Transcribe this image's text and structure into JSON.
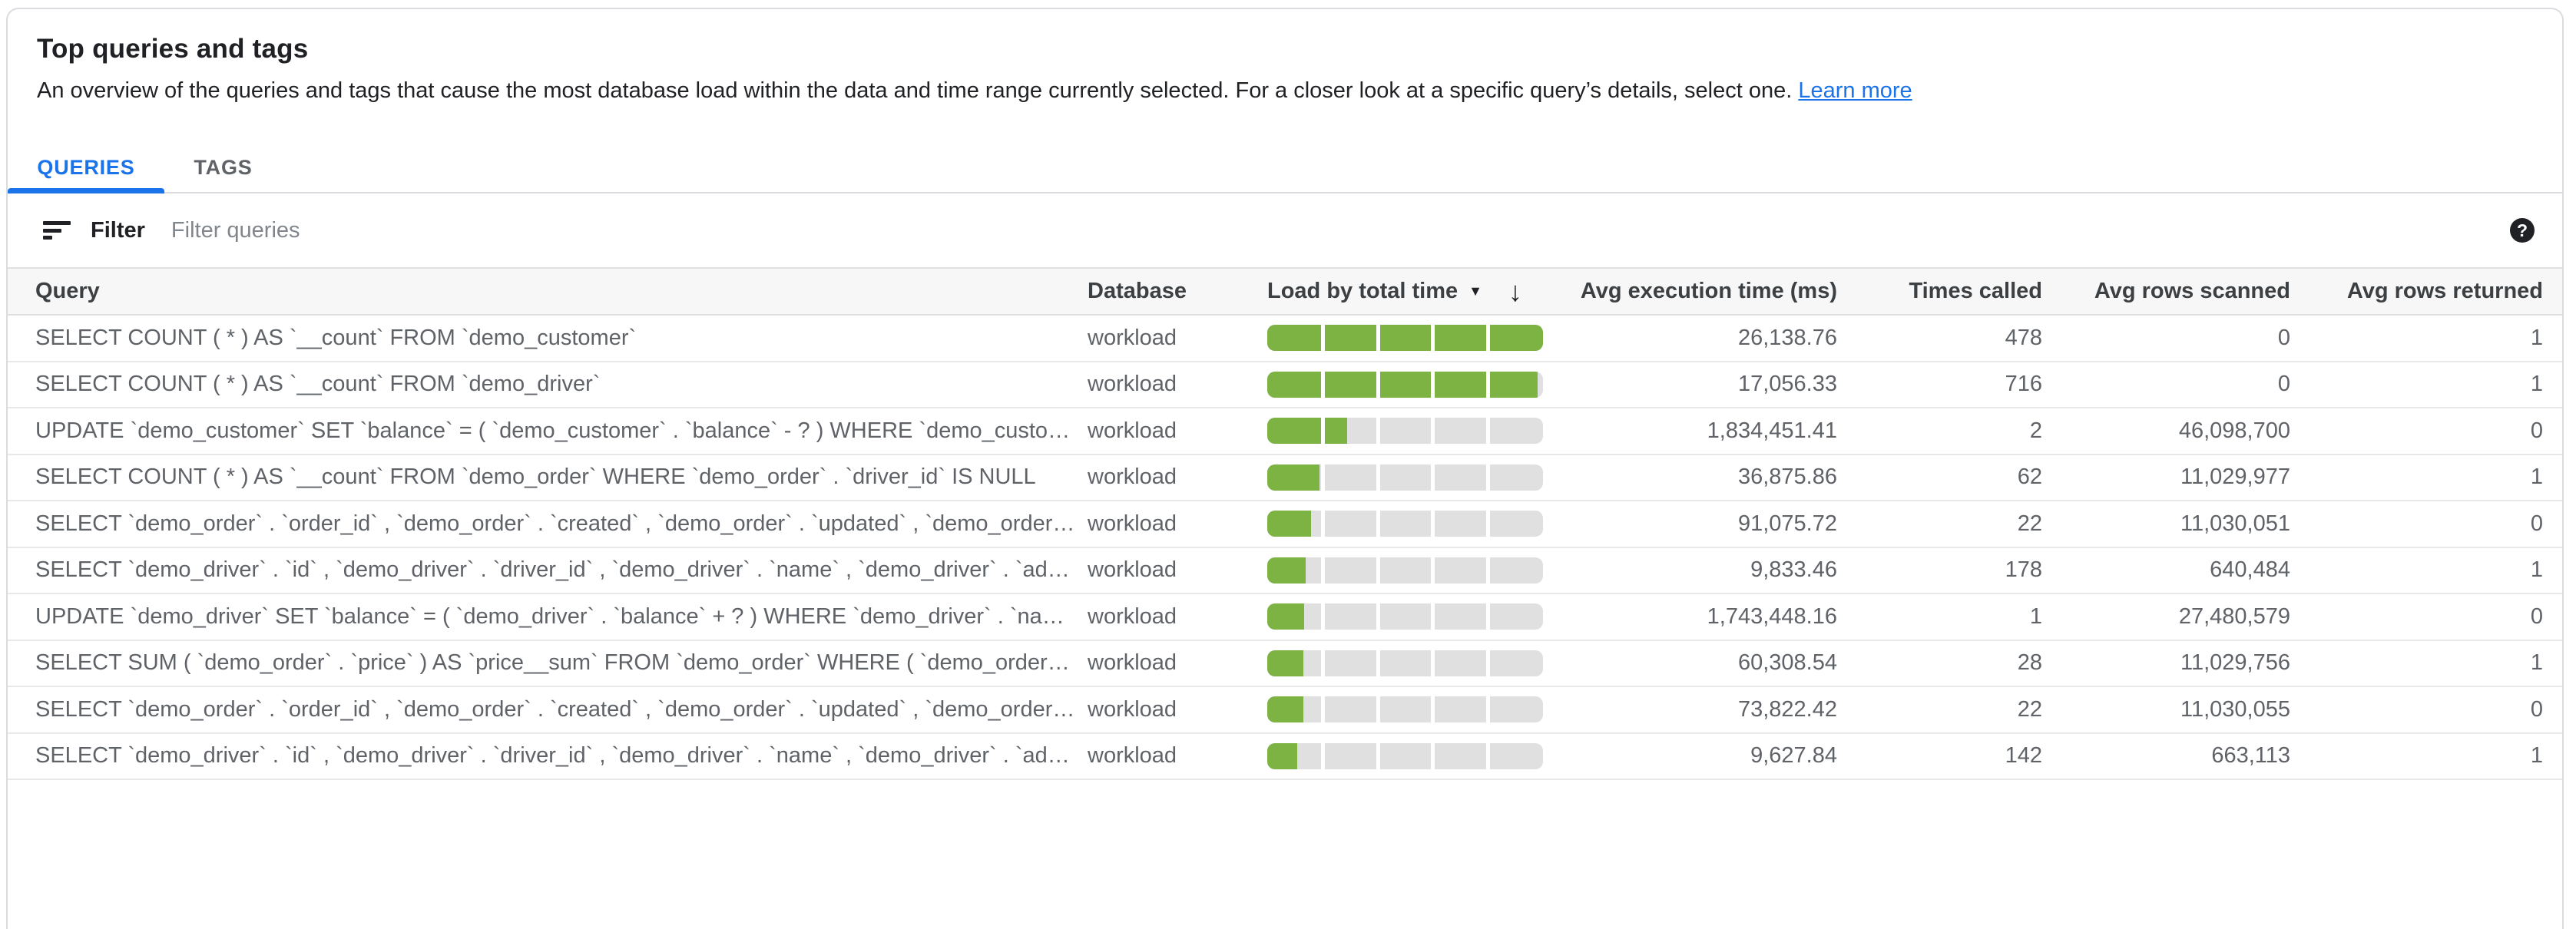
{
  "page": {
    "title": "Top queries and tags",
    "description": "An overview of the queries and tags that cause the most database load within the data and time range currently selected. For a closer look at a specific query’s details, select one. ",
    "learn_more_label": "Learn more"
  },
  "tabs": [
    {
      "label": "QUERIES",
      "active": true
    },
    {
      "label": "TAGS",
      "active": false
    }
  ],
  "filter_bar": {
    "filter_icon": "filter-list-icon",
    "filter_label": "Filter",
    "placeholder": "Filter queries",
    "help_icon": "help-icon"
  },
  "table": {
    "columns": {
      "query": "Query",
      "database": "Database",
      "load": "Load by total time",
      "avg_execution_time_ms": "Avg execution time (ms)",
      "times_called": "Times called",
      "avg_rows_scanned": "Avg rows scanned",
      "avg_rows_returned": "Avg rows returned"
    },
    "sort": {
      "column": "Load by total time",
      "direction": "descending",
      "caret_glyph": "▼",
      "arrow_glyph": "↓"
    },
    "colors": {
      "bar_fill": "#7cb342",
      "bar_track": "#e0e0e0",
      "accent_blue": "#1a73e8"
    },
    "rows": [
      {
        "query": "SELECT COUNT ( * ) AS `__count` FROM `demo_customer`",
        "database": "workload",
        "load_percent": 100,
        "avg_execution_time_ms": "26,138.76",
        "times_called": "478",
        "avg_rows_scanned": "0",
        "avg_rows_returned": "1"
      },
      {
        "query": "SELECT COUNT ( * ) AS `__count` FROM `demo_driver`",
        "database": "workload",
        "load_percent": 98,
        "avg_execution_time_ms": "17,056.33",
        "times_called": "716",
        "avg_rows_scanned": "0",
        "avg_rows_returned": "1"
      },
      {
        "query": "UPDATE `demo_customer` SET `balance` = ( `demo_customer` . `balance` - ? ) WHERE `demo_customer` . `name`...",
        "database": "workload",
        "load_percent": 29,
        "avg_execution_time_ms": "1,834,451.41",
        "times_called": "2",
        "avg_rows_scanned": "46,098,700",
        "avg_rows_returned": "0"
      },
      {
        "query": "SELECT COUNT ( * ) AS `__count` FROM `demo_order` WHERE `demo_order` . `driver_id` IS NULL",
        "database": "workload",
        "load_percent": 19,
        "avg_execution_time_ms": "36,875.86",
        "times_called": "62",
        "avg_rows_scanned": "11,029,977",
        "avg_rows_returned": "1"
      },
      {
        "query": "SELECT `demo_order` . `order_id` , `demo_order` . `created` , `demo_order` . `updated` , `demo_order` . `city` , `de...",
        "database": "workload",
        "load_percent": 16,
        "avg_execution_time_ms": "91,075.72",
        "times_called": "22",
        "avg_rows_scanned": "11,030,051",
        "avg_rows_returned": "0"
      },
      {
        "query": "SELECT `demo_driver` . `id` , `demo_driver` . `driver_id` , `demo_driver` . `name` , `demo_driver` . `address` , `dem...",
        "database": "workload",
        "load_percent": 14,
        "avg_execution_time_ms": "9,833.46",
        "times_called": "178",
        "avg_rows_scanned": "640,484",
        "avg_rows_returned": "1"
      },
      {
        "query": "UPDATE `demo_driver` SET `balance` = ( `demo_driver` . `balance` + ? ) WHERE `demo_driver` . `name` LIKE BINA...",
        "database": "workload",
        "load_percent": 13.5,
        "avg_execution_time_ms": "1,743,448.16",
        "times_called": "1",
        "avg_rows_scanned": "27,480,579",
        "avg_rows_returned": "0"
      },
      {
        "query": "SELECT SUM ( `demo_order` . `price` ) AS `price__sum` FROM `demo_order` WHERE ( `demo_order` . `customer_i...",
        "database": "workload",
        "load_percent": 13,
        "avg_execution_time_ms": "60,308.54",
        "times_called": "28",
        "avg_rows_scanned": "11,029,756",
        "avg_rows_returned": "1"
      },
      {
        "query": "SELECT `demo_order` . `order_id` , `demo_order` . `created` , `demo_order` . `updated` , `demo_order` . `city` , `de...",
        "database": "workload",
        "load_percent": 13,
        "avg_execution_time_ms": "73,822.42",
        "times_called": "22",
        "avg_rows_scanned": "11,030,055",
        "avg_rows_returned": "0"
      },
      {
        "query": "SELECT `demo_driver` . `id` , `demo_driver` . `driver_id` , `demo_driver` . `name` , `demo_driver` . `address` , `dem...",
        "database": "workload",
        "load_percent": 11,
        "avg_execution_time_ms": "9,627.84",
        "times_called": "142",
        "avg_rows_scanned": "663,113",
        "avg_rows_returned": "1"
      }
    ]
  }
}
